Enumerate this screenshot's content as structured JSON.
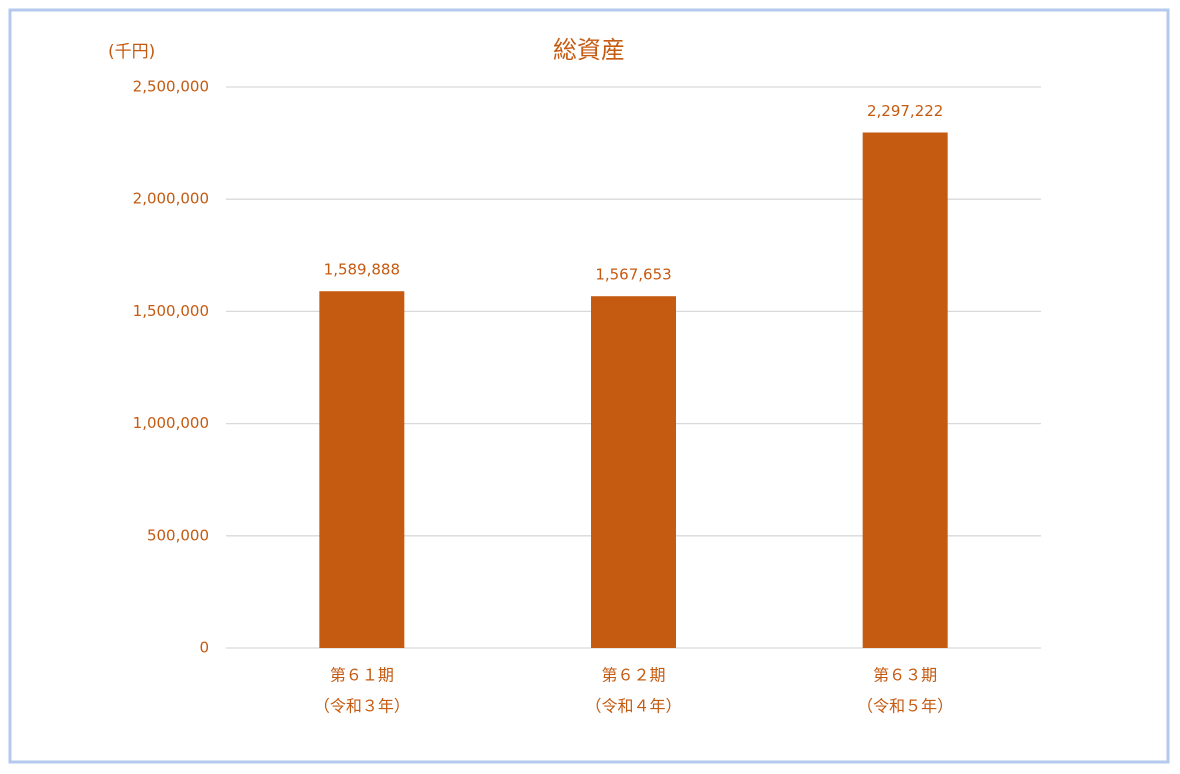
{
  "chart_data": {
    "type": "bar",
    "title": "総資産",
    "y_label": "(千円)",
    "categories": [
      [
        "第６１期",
        "（令和３年）"
      ],
      [
        "第６２期",
        "（令和４年）"
      ],
      [
        "第６３期",
        "（令和５年）"
      ]
    ],
    "values": [
      1589888,
      1567653,
      2297222
    ],
    "value_labels": [
      "1,589,888",
      "1,567,653",
      "2,297,222"
    ],
    "color": "#c55a11",
    "ylim": [
      0,
      2500000
    ],
    "yticks": [
      0,
      {
        "value": 500000,
        "label": "500,000"
      },
      {
        "value": 1000000,
        "label": "1,000,000"
      },
      {
        "value": 1500000,
        "label": "1,500,000"
      },
      {
        "value": 2000000,
        "label": "2,000,000"
      },
      {
        "value": 2500000,
        "label": "2,500,000"
      }
    ],
    "grid": true
  }
}
